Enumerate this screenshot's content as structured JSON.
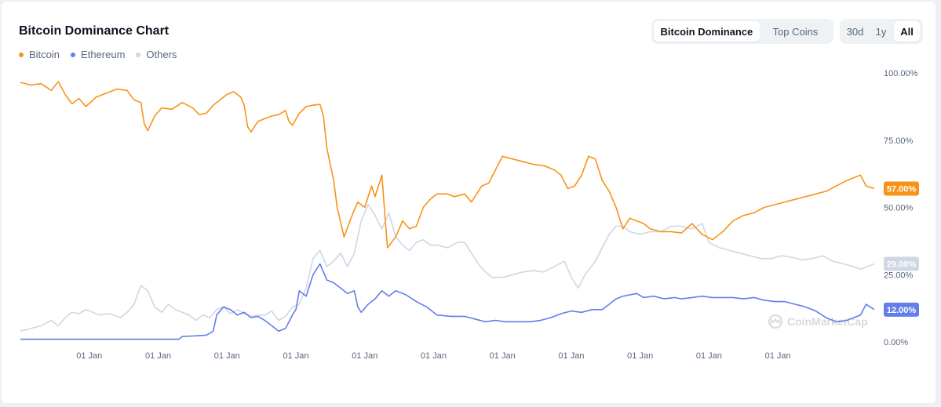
{
  "header": {
    "title": "Bitcoin Dominance Chart",
    "view_tabs": [
      {
        "label": "Bitcoin Dominance",
        "active": true
      },
      {
        "label": "Top Coins",
        "active": false
      }
    ],
    "range_tabs": [
      {
        "label": "30d",
        "active": false
      },
      {
        "label": "1y",
        "active": false
      },
      {
        "label": "All",
        "active": true
      }
    ]
  },
  "legend": [
    {
      "label": "Bitcoin",
      "color": "#f7931a"
    },
    {
      "label": "Ethereum",
      "color": "#627eea"
    },
    {
      "label": "Others",
      "color": "#cfd6e4"
    }
  ],
  "watermark": {
    "text": "CoinMarketCap",
    "icon": "coinmarketcap-logo-icon"
  },
  "chart_data": {
    "type": "line",
    "x_tick_labels": [
      "01 Jan",
      "01 Jan",
      "01 Jan",
      "01 Jan",
      "01 Jan",
      "01 Jan",
      "01 Jan",
      "01 Jan",
      "01 Jan",
      "01 Jan",
      "01 Jan"
    ],
    "y_tick_labels": [
      "100.00%",
      "75.00%",
      "50.00%",
      "25.00%",
      "0.00%"
    ],
    "ylim": [
      0,
      100
    ],
    "xlim": [
      0,
      12.4
    ],
    "grid": false,
    "legend_position": "top-left",
    "series": [
      {
        "name": "Bitcoin",
        "color": "#f7931a",
        "last_value_label": "57.00%",
        "points": [
          [
            0,
            96.5
          ],
          [
            0.15,
            95.5
          ],
          [
            0.3,
            96
          ],
          [
            0.45,
            93.5
          ],
          [
            0.55,
            96.8
          ],
          [
            0.65,
            92
          ],
          [
            0.75,
            88.5
          ],
          [
            0.85,
            90.5
          ],
          [
            0.95,
            87.5
          ],
          [
            1.1,
            91
          ],
          [
            1.25,
            92.5
          ],
          [
            1.4,
            94
          ],
          [
            1.55,
            93.5
          ],
          [
            1.65,
            90
          ],
          [
            1.75,
            89
          ],
          [
            1.8,
            81
          ],
          [
            1.85,
            78.5
          ],
          [
            1.95,
            84
          ],
          [
            2.05,
            87
          ],
          [
            2.2,
            86.5
          ],
          [
            2.35,
            89
          ],
          [
            2.5,
            87
          ],
          [
            2.6,
            84.5
          ],
          [
            2.7,
            85
          ],
          [
            2.8,
            88
          ],
          [
            2.9,
            90
          ],
          [
            3.0,
            92
          ],
          [
            3.1,
            93
          ],
          [
            3.2,
            91
          ],
          [
            3.25,
            88
          ],
          [
            3.3,
            80
          ],
          [
            3.35,
            78
          ],
          [
            3.45,
            82
          ],
          [
            3.55,
            83
          ],
          [
            3.65,
            84
          ],
          [
            3.75,
            84.5
          ],
          [
            3.85,
            86
          ],
          [
            3.9,
            82
          ],
          [
            3.95,
            80.5
          ],
          [
            4.05,
            85
          ],
          [
            4.15,
            87.5
          ],
          [
            4.25,
            88
          ],
          [
            4.35,
            88.3
          ],
          [
            4.4,
            84
          ],
          [
            4.45,
            72
          ],
          [
            4.5,
            66
          ],
          [
            4.55,
            60
          ],
          [
            4.6,
            50
          ],
          [
            4.7,
            39
          ],
          [
            4.8,
            46
          ],
          [
            4.9,
            52
          ],
          [
            5.0,
            50
          ],
          [
            5.1,
            58
          ],
          [
            5.15,
            54
          ],
          [
            5.25,
            62
          ],
          [
            5.3,
            45
          ],
          [
            5.33,
            35
          ],
          [
            5.45,
            39
          ],
          [
            5.55,
            45
          ],
          [
            5.65,
            42
          ],
          [
            5.75,
            43
          ],
          [
            5.85,
            50
          ],
          [
            5.95,
            53
          ],
          [
            6.05,
            55
          ],
          [
            6.2,
            55
          ],
          [
            6.3,
            54
          ],
          [
            6.45,
            55
          ],
          [
            6.55,
            52
          ],
          [
            6.6,
            54
          ],
          [
            6.7,
            58
          ],
          [
            6.8,
            59
          ],
          [
            6.9,
            64
          ],
          [
            7.0,
            69
          ],
          [
            7.15,
            68
          ],
          [
            7.3,
            67
          ],
          [
            7.45,
            66
          ],
          [
            7.6,
            65.5
          ],
          [
            7.75,
            64
          ],
          [
            7.85,
            62
          ],
          [
            7.95,
            57
          ],
          [
            8.05,
            58
          ],
          [
            8.15,
            62
          ],
          [
            8.25,
            69
          ],
          [
            8.35,
            68
          ],
          [
            8.45,
            60
          ],
          [
            8.55,
            56
          ],
          [
            8.65,
            50
          ],
          [
            8.75,
            42
          ],
          [
            8.85,
            46
          ],
          [
            8.95,
            45
          ],
          [
            9.05,
            44
          ],
          [
            9.15,
            42
          ],
          [
            9.3,
            41
          ],
          [
            9.45,
            41
          ],
          [
            9.6,
            40.5
          ],
          [
            9.75,
            44
          ],
          [
            9.9,
            40
          ],
          [
            10.05,
            38
          ],
          [
            10.2,
            41
          ],
          [
            10.35,
            45
          ],
          [
            10.5,
            47
          ],
          [
            10.65,
            48
          ],
          [
            10.8,
            50
          ],
          [
            10.95,
            51
          ],
          [
            11.1,
            52
          ],
          [
            11.25,
            53
          ],
          [
            11.4,
            54
          ],
          [
            11.55,
            55
          ],
          [
            11.7,
            56
          ],
          [
            11.85,
            58
          ],
          [
            12.0,
            60
          ],
          [
            12.1,
            61
          ],
          [
            12.2,
            62
          ],
          [
            12.28,
            58
          ],
          [
            12.4,
            57
          ]
        ]
      },
      {
        "name": "Ethereum",
        "color": "#627eea",
        "last_value_label": "12.00%",
        "points": [
          [
            0,
            1
          ],
          [
            2.3,
            1
          ],
          [
            2.35,
            2
          ],
          [
            2.5,
            2.2
          ],
          [
            2.7,
            2.5
          ],
          [
            2.8,
            4
          ],
          [
            2.85,
            10
          ],
          [
            2.95,
            13
          ],
          [
            3.05,
            12
          ],
          [
            3.15,
            10
          ],
          [
            3.25,
            11
          ],
          [
            3.35,
            9
          ],
          [
            3.45,
            9.5
          ],
          [
            3.55,
            8
          ],
          [
            3.65,
            6
          ],
          [
            3.75,
            4
          ],
          [
            3.85,
            5
          ],
          [
            3.95,
            10
          ],
          [
            4.0,
            12
          ],
          [
            4.05,
            19
          ],
          [
            4.15,
            17
          ],
          [
            4.25,
            25
          ],
          [
            4.35,
            29
          ],
          [
            4.45,
            23
          ],
          [
            4.55,
            22
          ],
          [
            4.65,
            20
          ],
          [
            4.75,
            18
          ],
          [
            4.85,
            19
          ],
          [
            4.9,
            13
          ],
          [
            4.95,
            11
          ],
          [
            5.05,
            14
          ],
          [
            5.15,
            16
          ],
          [
            5.25,
            19
          ],
          [
            5.35,
            17
          ],
          [
            5.45,
            19
          ],
          [
            5.6,
            17.5
          ],
          [
            5.75,
            15
          ],
          [
            5.9,
            13
          ],
          [
            6.05,
            10
          ],
          [
            6.25,
            9.5
          ],
          [
            6.45,
            9.5
          ],
          [
            6.6,
            8.5
          ],
          [
            6.75,
            7.5
          ],
          [
            6.9,
            8
          ],
          [
            7.05,
            7.5
          ],
          [
            7.2,
            7.5
          ],
          [
            7.4,
            7.5
          ],
          [
            7.55,
            8
          ],
          [
            7.7,
            9
          ],
          [
            7.85,
            10.5
          ],
          [
            8.0,
            11.5
          ],
          [
            8.15,
            11
          ],
          [
            8.3,
            12
          ],
          [
            8.45,
            12
          ],
          [
            8.55,
            14
          ],
          [
            8.65,
            16
          ],
          [
            8.75,
            17
          ],
          [
            8.85,
            17.5
          ],
          [
            8.95,
            18
          ],
          [
            9.05,
            16.5
          ],
          [
            9.2,
            17
          ],
          [
            9.35,
            16
          ],
          [
            9.5,
            16.5
          ],
          [
            9.6,
            16
          ],
          [
            9.75,
            16.5
          ],
          [
            9.9,
            17
          ],
          [
            10.05,
            16.5
          ],
          [
            10.2,
            16.5
          ],
          [
            10.35,
            16.5
          ],
          [
            10.5,
            16
          ],
          [
            10.65,
            16.5
          ],
          [
            10.8,
            15.5
          ],
          [
            10.95,
            15
          ],
          [
            11.1,
            15
          ],
          [
            11.25,
            14
          ],
          [
            11.4,
            13
          ],
          [
            11.55,
            11.5
          ],
          [
            11.7,
            9
          ],
          [
            11.85,
            7.5
          ],
          [
            12.0,
            8
          ],
          [
            12.1,
            9
          ],
          [
            12.2,
            10
          ],
          [
            12.28,
            14
          ],
          [
            12.4,
            12
          ]
        ]
      },
      {
        "name": "Others",
        "color": "#cfd6e4",
        "last_value_label": "29.00%",
        "points": [
          [
            0,
            4
          ],
          [
            0.15,
            5
          ],
          [
            0.3,
            6
          ],
          [
            0.45,
            8
          ],
          [
            0.55,
            6
          ],
          [
            0.65,
            9
          ],
          [
            0.75,
            11
          ],
          [
            0.85,
            10.5
          ],
          [
            0.95,
            12
          ],
          [
            1.05,
            11
          ],
          [
            1.15,
            10
          ],
          [
            1.3,
            10.5
          ],
          [
            1.45,
            9
          ],
          [
            1.55,
            11
          ],
          [
            1.65,
            14
          ],
          [
            1.75,
            21
          ],
          [
            1.85,
            19
          ],
          [
            1.95,
            13
          ],
          [
            2.05,
            11
          ],
          [
            2.15,
            14
          ],
          [
            2.25,
            12
          ],
          [
            2.35,
            11
          ],
          [
            2.45,
            10
          ],
          [
            2.55,
            8
          ],
          [
            2.65,
            10
          ],
          [
            2.75,
            9
          ],
          [
            2.85,
            12
          ],
          [
            2.95,
            13
          ],
          [
            3.05,
            10.5
          ],
          [
            3.15,
            12
          ],
          [
            3.25,
            10.5
          ],
          [
            3.35,
            9.5
          ],
          [
            3.45,
            10
          ],
          [
            3.55,
            10
          ],
          [
            3.65,
            11.5
          ],
          [
            3.75,
            8
          ],
          [
            3.85,
            9.5
          ],
          [
            3.95,
            13
          ],
          [
            4.05,
            14
          ],
          [
            4.15,
            20
          ],
          [
            4.25,
            31
          ],
          [
            4.35,
            34
          ],
          [
            4.45,
            28
          ],
          [
            4.55,
            30
          ],
          [
            4.65,
            33
          ],
          [
            4.75,
            28
          ],
          [
            4.85,
            33
          ],
          [
            4.9,
            39
          ],
          [
            4.95,
            45
          ],
          [
            5.05,
            51
          ],
          [
            5.15,
            47
          ],
          [
            5.25,
            42
          ],
          [
            5.35,
            48
          ],
          [
            5.45,
            39
          ],
          [
            5.55,
            36
          ],
          [
            5.65,
            34
          ],
          [
            5.75,
            37
          ],
          [
            5.85,
            38
          ],
          [
            5.95,
            36
          ],
          [
            6.05,
            36
          ],
          [
            6.2,
            35
          ],
          [
            6.35,
            37
          ],
          [
            6.45,
            37
          ],
          [
            6.55,
            33
          ],
          [
            6.65,
            29
          ],
          [
            6.75,
            26
          ],
          [
            6.85,
            24
          ],
          [
            7.0,
            24
          ],
          [
            7.15,
            25
          ],
          [
            7.3,
            26
          ],
          [
            7.45,
            26.5
          ],
          [
            7.6,
            26
          ],
          [
            7.75,
            28
          ],
          [
            7.9,
            30
          ],
          [
            8.0,
            24
          ],
          [
            8.1,
            20
          ],
          [
            8.2,
            25
          ],
          [
            8.35,
            30
          ],
          [
            8.45,
            35
          ],
          [
            8.55,
            40
          ],
          [
            8.65,
            43
          ],
          [
            8.75,
            43
          ],
          [
            8.85,
            41
          ],
          [
            9.0,
            40
          ],
          [
            9.15,
            41
          ],
          [
            9.3,
            41
          ],
          [
            9.45,
            43
          ],
          [
            9.6,
            43
          ],
          [
            9.75,
            42
          ],
          [
            9.9,
            44
          ],
          [
            10.0,
            37
          ],
          [
            10.15,
            35
          ],
          [
            10.3,
            34
          ],
          [
            10.45,
            33
          ],
          [
            10.6,
            32
          ],
          [
            10.75,
            31
          ],
          [
            10.9,
            31
          ],
          [
            11.05,
            32
          ],
          [
            11.2,
            31.5
          ],
          [
            11.35,
            30.5
          ],
          [
            11.5,
            31
          ],
          [
            11.65,
            32
          ],
          [
            11.8,
            30
          ],
          [
            11.95,
            29
          ],
          [
            12.1,
            28
          ],
          [
            12.2,
            27
          ],
          [
            12.3,
            28
          ],
          [
            12.4,
            29
          ]
        ]
      }
    ]
  }
}
